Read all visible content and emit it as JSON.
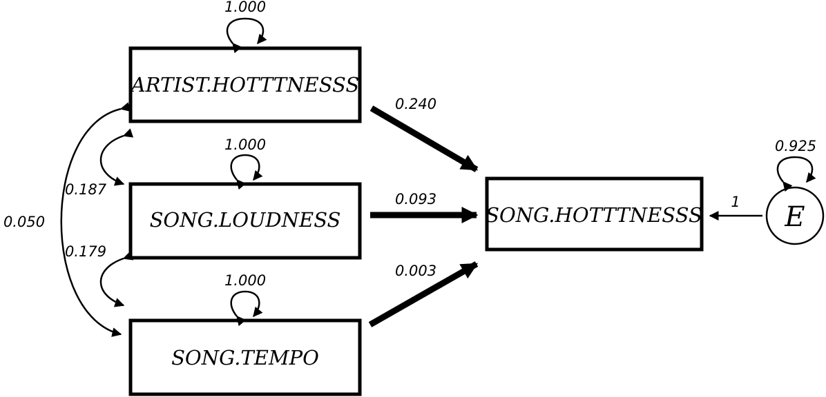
{
  "nodes": {
    "artist_hotttnesss": "ARTIST.HOTTTNESSS",
    "song_loudness": "SONG.LOUDNESS",
    "song_tempo": "SONG.TEMPO",
    "song_hotttnesss": "SONG.HOTTTNESSS",
    "error": "E"
  },
  "variances": {
    "artist_hotttnesss": "1.000",
    "song_loudness": "1.000",
    "song_tempo": "1.000",
    "error": "0.925"
  },
  "paths": {
    "artist_to_song": "0.240",
    "loudness_to_song": "0.093",
    "tempo_to_song": "0.003",
    "error_to_song": "1"
  },
  "covariances": {
    "artist_loudness": "0.187",
    "loudness_tempo": "0.179",
    "artist_tempo": "0.050"
  }
}
